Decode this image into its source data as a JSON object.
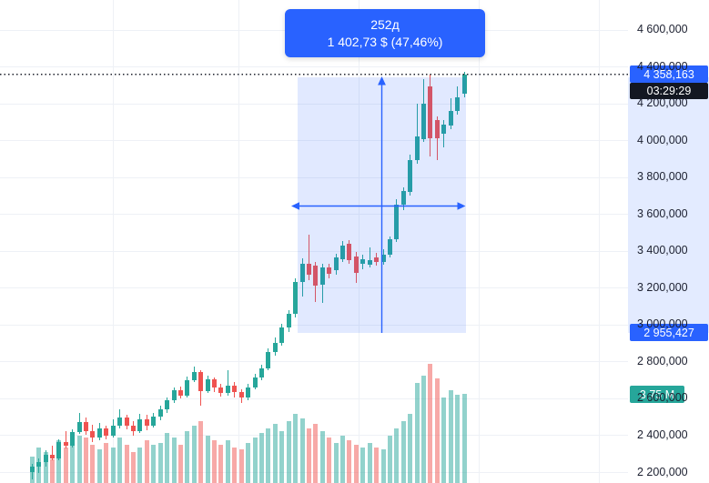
{
  "colors": {
    "accent_blue": "#2962FF",
    "up": "#26a69a",
    "down": "#ef5350",
    "volume_up": "rgba(38,166,154,0.5)",
    "volume_down": "rgba(239,83,80,0.5)",
    "countdown_bg": "#131722",
    "volume_badge_bg": "#26a69a"
  },
  "measure_tooltip": {
    "bars": "252д",
    "change": "1 402,73 $ (47,46%)"
  },
  "price_axis": {
    "badges": {
      "last_price": "4 358,163",
      "countdown": "03:29:29",
      "measure_from": "2 955,427",
      "volume": "3,75 M"
    },
    "ticks": [
      {
        "price": 4600,
        "label": "4 600,000"
      },
      {
        "price": 4400,
        "label": "4 400,000"
      },
      {
        "price": 4200,
        "label": "4 200,000"
      },
      {
        "price": 4000,
        "label": "4 000,000"
      },
      {
        "price": 3800,
        "label": "3 800,000"
      },
      {
        "price": 3600,
        "label": "3 600,000"
      },
      {
        "price": 3400,
        "label": "3 400,000"
      },
      {
        "price": 3200,
        "label": "3 200,000"
      },
      {
        "price": 3000,
        "label": "3 000,000"
      },
      {
        "price": 2800,
        "label": "2 800,000"
      },
      {
        "price": 2600,
        "label": "2 600,000"
      },
      {
        "price": 2400,
        "label": "2 400,000"
      },
      {
        "price": 2200,
        "label": "2 200,000"
      }
    ]
  },
  "chart_data": {
    "type": "candlestick",
    "grid": true,
    "price_range": [
      2200,
      4600
    ],
    "tick_step": 200,
    "last_price": 4358.163,
    "bar_countdown": "03:29:29",
    "last_volume_millions": 3.75,
    "measurement": {
      "days": 252,
      "days_label": "252д",
      "change_abs": 1402.73,
      "change_pct": 47.46,
      "from_price": 2955.427,
      "to_price": 4358.163
    },
    "candles_format": [
      "open",
      "high",
      "low",
      "close",
      "volume_millions"
    ],
    "candles": [
      [
        2200,
        2245,
        2160,
        2228,
        1.1
      ],
      [
        2228,
        2272,
        2196,
        2252,
        1.5
      ],
      [
        2252,
        2318,
        2232,
        2296,
        1.3
      ],
      [
        2296,
        2342,
        2262,
        2276,
        1.0
      ],
      [
        2276,
        2380,
        2264,
        2362,
        1.8
      ],
      [
        2362,
        2420,
        2330,
        2345,
        1.5
      ],
      [
        2345,
        2430,
        2332,
        2415,
        1.6
      ],
      [
        2415,
        2522,
        2405,
        2472,
        2.0
      ],
      [
        2472,
        2498,
        2402,
        2422,
        1.9
      ],
      [
        2422,
        2455,
        2365,
        2388,
        1.6
      ],
      [
        2388,
        2465,
        2375,
        2438,
        1.4
      ],
      [
        2438,
        2452,
        2378,
        2398,
        1.7
      ],
      [
        2398,
        2488,
        2388,
        2450,
        1.5
      ],
      [
        2450,
        2538,
        2438,
        2498,
        1.9
      ],
      [
        2498,
        2512,
        2432,
        2452,
        1.6
      ],
      [
        2452,
        2478,
        2398,
        2420,
        1.3
      ],
      [
        2420,
        2518,
        2410,
        2486,
        1.5
      ],
      [
        2486,
        2510,
        2428,
        2450,
        1.8
      ],
      [
        2450,
        2520,
        2440,
        2500,
        1.6
      ],
      [
        2500,
        2560,
        2480,
        2538,
        1.7
      ],
      [
        2538,
        2605,
        2522,
        2590,
        2.1
      ],
      [
        2590,
        2660,
        2574,
        2644,
        1.9
      ],
      [
        2644,
        2666,
        2598,
        2614,
        1.6
      ],
      [
        2614,
        2720,
        2604,
        2700,
        2.2
      ],
      [
        2700,
        2774,
        2688,
        2744,
        2.4
      ],
      [
        2744,
        2754,
        2558,
        2640,
        2.6
      ],
      [
        2640,
        2724,
        2628,
        2704,
        2.0
      ],
      [
        2704,
        2714,
        2636,
        2660,
        1.8
      ],
      [
        2660,
        2680,
        2610,
        2628,
        1.6
      ],
      [
        2628,
        2754,
        2616,
        2670,
        1.8
      ],
      [
        2670,
        2688,
        2606,
        2634,
        1.5
      ],
      [
        2634,
        2650,
        2576,
        2604,
        1.4
      ],
      [
        2604,
        2680,
        2588,
        2658,
        1.7
      ],
      [
        2658,
        2734,
        2648,
        2714,
        1.9
      ],
      [
        2714,
        2784,
        2698,
        2764,
        2.1
      ],
      [
        2764,
        2870,
        2754,
        2850,
        2.3
      ],
      [
        2850,
        2930,
        2830,
        2900,
        2.5
      ],
      [
        2900,
        3004,
        2884,
        2984,
        2.2
      ],
      [
        2984,
        3080,
        2960,
        3060,
        2.6
      ],
      [
        3060,
        3250,
        3040,
        3230,
        2.9
      ],
      [
        3230,
        3360,
        3150,
        3330,
        2.7
      ],
      [
        3330,
        3490,
        3240,
        3270,
        2.3
      ],
      [
        3320,
        3340,
        3124,
        3210,
        2.5
      ],
      [
        3214,
        3330,
        3118,
        3308,
        2.2
      ],
      [
        3308,
        3330,
        3250,
        3274,
        1.9
      ],
      [
        3294,
        3384,
        3268,
        3364,
        1.7
      ],
      [
        3354,
        3454,
        3338,
        3430,
        2.0
      ],
      [
        3440,
        3460,
        3328,
        3350,
        1.8
      ],
      [
        3370,
        3394,
        3224,
        3280,
        1.6
      ],
      [
        3330,
        3380,
        3300,
        3354,
        1.5
      ],
      [
        3324,
        3420,
        3308,
        3348,
        1.7
      ],
      [
        3364,
        3390,
        3318,
        3340,
        1.5
      ],
      [
        3340,
        3410,
        3324,
        3380,
        1.4
      ],
      [
        3380,
        3480,
        3364,
        3464,
        2.0
      ],
      [
        3464,
        3680,
        3448,
        3650,
        2.3
      ],
      [
        3650,
        3744,
        3620,
        3724,
        2.6
      ],
      [
        3720,
        3920,
        3700,
        3890,
        2.9
      ],
      [
        3890,
        4200,
        3870,
        4020,
        4.2
      ],
      [
        4004,
        4330,
        3990,
        4200,
        4.5
      ],
      [
        4290,
        4354,
        3910,
        4010,
        5.0
      ],
      [
        4110,
        4130,
        3894,
        4010,
        4.4
      ],
      [
        4034,
        4110,
        3960,
        4084,
        3.6
      ],
      [
        4080,
        4230,
        4060,
        4160,
        3.9
      ],
      [
        4160,
        4290,
        4140,
        4234,
        3.7
      ],
      [
        4250,
        4370,
        4230,
        4358.163,
        3.75
      ]
    ]
  }
}
